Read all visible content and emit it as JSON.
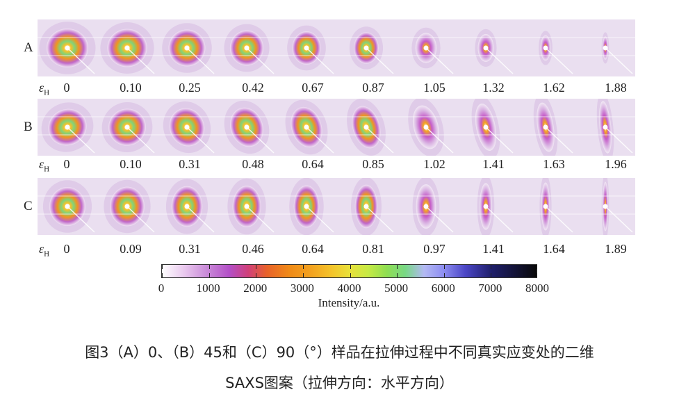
{
  "figure": {
    "rows": [
      {
        "label": "A",
        "strains": [
          "0",
          "0.10",
          "0.25",
          "0.42",
          "0.67",
          "0.87",
          "1.05",
          "1.32",
          "1.62",
          "1.88"
        ]
      },
      {
        "label": "B",
        "strains": [
          "0",
          "0.10",
          "0.31",
          "0.48",
          "0.64",
          "0.85",
          "1.02",
          "1.41",
          "1.63",
          "1.96"
        ]
      },
      {
        "label": "C",
        "strains": [
          "0",
          "0.09",
          "0.31",
          "0.46",
          "0.64",
          "0.81",
          "0.97",
          "1.41",
          "1.64",
          "1.89"
        ]
      }
    ],
    "strain_symbol": "ε",
    "strain_subscript": "H",
    "colorbar": {
      "ticks": [
        "0",
        "1000",
        "2000",
        "3000",
        "4000",
        "5000",
        "6000",
        "7000",
        "8000"
      ],
      "title": "Intensity/a.u.",
      "colors": [
        "#ffffff",
        "#c98ad8",
        "#d0407a",
        "#f08a17",
        "#f4c22a",
        "#c7ea44",
        "#78d886",
        "#8f8ff2",
        "#4b46c6",
        "#080808"
      ]
    }
  },
  "caption": {
    "line1": "图3（A）0、（B）45和（C）90（°）样品在拉伸过程中不同真实应变处的二维",
    "line2": "SAXS图案（拉伸方向：水平方向）"
  }
}
